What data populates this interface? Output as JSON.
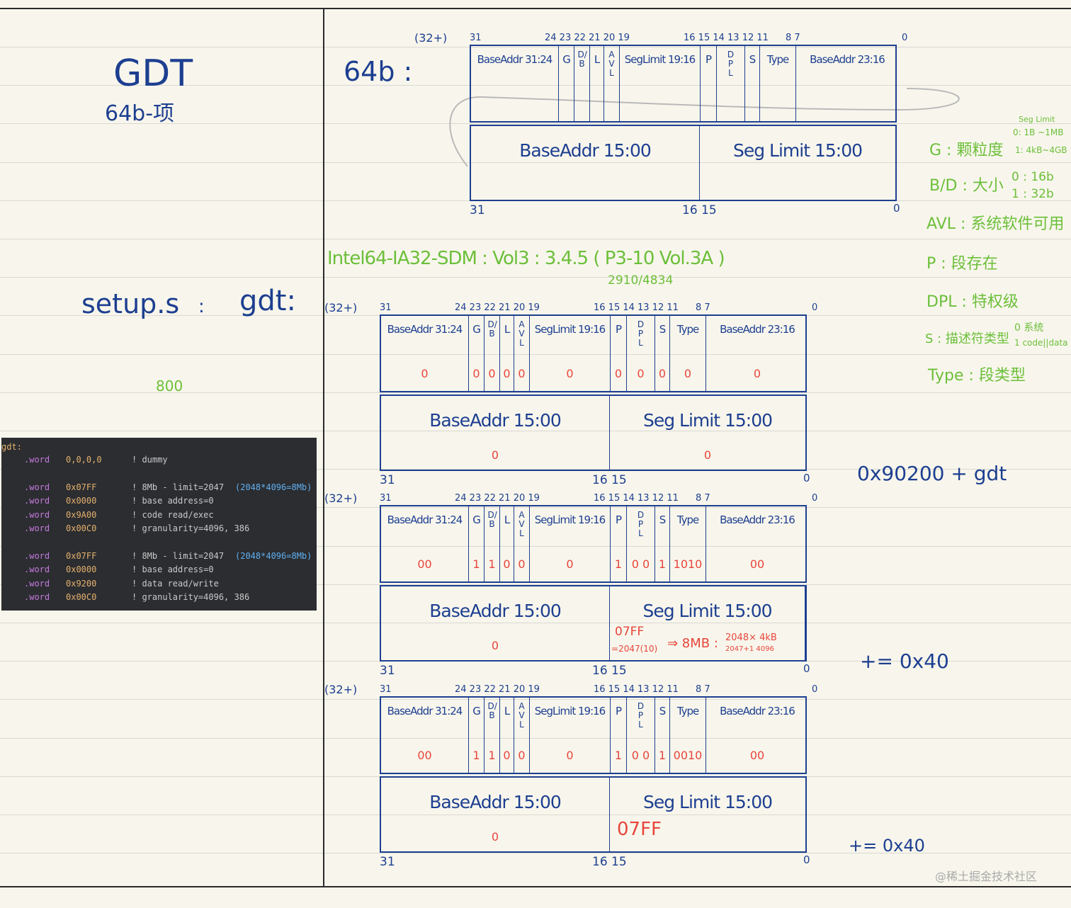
{
  "left": {
    "title": "GDT",
    "subtitle": "64b-项",
    "setup_file": "setup.s",
    "colon": ":",
    "gdt_label": "gdt:",
    "green_note": "800"
  },
  "code": {
    "label": "gdt:",
    "lines": [
      {
        "kw": ".word",
        "val": "0,0,0,0",
        "comment": "! dummy",
        "extra": ""
      },
      {
        "kw": ".word",
        "val": "0x07FF",
        "comment": "! 8Mb - limit=2047",
        "extra": "(2048*4096=8Mb)"
      },
      {
        "kw": ".word",
        "val": "0x0000",
        "comment": "! base address=0",
        "extra": ""
      },
      {
        "kw": ".word",
        "val": "0x9A00",
        "comment": "! code read/exec",
        "extra": ""
      },
      {
        "kw": ".word",
        "val": "0x00C0",
        "comment": "! granularity=4096, 386",
        "extra": ""
      },
      {
        "kw": ".word",
        "val": "0x07FF",
        "comment": "! 8Mb - limit=2047",
        "extra": "(2048*4096=8Mb)"
      },
      {
        "kw": ".word",
        "val": "0x0000",
        "comment": "! base address=0",
        "extra": ""
      },
      {
        "kw": ".word",
        "val": "0x9200",
        "comment": "! data read/write",
        "extra": ""
      },
      {
        "kw": ".word",
        "val": "0x00C0",
        "comment": "! granularity=4096, 386",
        "extra": ""
      }
    ]
  },
  "header": {
    "size_label": "64b :",
    "ref": "Intel64-IA32-SDM : Vol3 : 3.4.5 ( P3-10 Vol.3A )",
    "ref_page": "2910/4834"
  },
  "fields": [
    "BaseAddr 31:24",
    "G",
    "D/B",
    "L",
    "AVL",
    "SegLimit 19:16",
    "P",
    "DPL",
    "S",
    "Type",
    "BaseAddr 23:16"
  ],
  "low_fields": [
    "BaseAddr 15:00",
    "Seg Limit 15:00"
  ],
  "bits": {
    "prefix": "(32+)",
    "b31": "31",
    "hi_group": "24 23 22 21 20 19",
    "mid_group": "16 15 14 13 12 11",
    "b87": "8 7",
    "b0": "0",
    "low_b31": "31",
    "low_mid": "16 15",
    "low_b0": "0"
  },
  "descriptors": [
    {
      "values": [],
      "low_values": [
        "",
        ""
      ]
    },
    {
      "values": [
        "0",
        "0",
        "0",
        "0",
        "0",
        "0",
        "0",
        "0",
        "0",
        "0",
        "0"
      ],
      "low_values": [
        "0",
        "0"
      ]
    },
    {
      "values": [
        "00",
        "1",
        "1",
        "0",
        "0",
        "0",
        "1",
        "0 0",
        "1",
        "1010",
        "00"
      ],
      "low_values": [
        "0",
        ""
      ]
    },
    {
      "values": [
        "00",
        "1",
        "1",
        "0",
        "0",
        "0",
        "1",
        "0 0",
        "1",
        "0010",
        "00"
      ],
      "low_values": [
        "0",
        "07FF"
      ]
    }
  ],
  "limit_note": {
    "hex": "07FF",
    "dec": "=2047(10)",
    "arrow": "⇒ 8MB :",
    "calc1": "2048× 4kB",
    "calc2": "2047+1   4096"
  },
  "right": {
    "addr": "0x90200 + gdt",
    "inc1": "+= 0x40",
    "inc2": "+= 0x40"
  },
  "legend": {
    "seg_limit": "Seg Limit",
    "g0": "0: 1B ~1MB",
    "g1": "1: 4kB~4GB",
    "g": "G : 颗粒度",
    "bd": "B/D : 大小",
    "bd0": "0 : 16b",
    "bd1": "1 : 32b",
    "avl": "AVL : 系统软件可用",
    "p": "P : 段存在",
    "dpl": "DPL : 特权级",
    "s": "S : 描述符类型",
    "s0": "0 系统",
    "s1": "1 code||data",
    "type": "Type : 段类型"
  },
  "watermark": "@稀土掘金技术社区",
  "colors": {
    "ink": "#1d3f91",
    "note": "#6cbf3a",
    "value": "#e8453c",
    "paper": "#f8f6ec",
    "code_bg": "#2b2d31"
  }
}
